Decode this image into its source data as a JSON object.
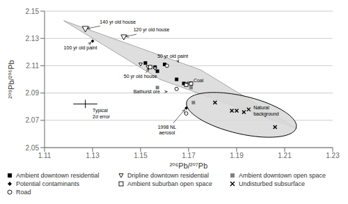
{
  "chart_data": {
    "type": "scatter",
    "x_label": "²⁰⁶Pb/²⁰⁷Pb",
    "y_label": "²⁰⁸Pb/²⁰⁶Pb",
    "xlim": [
      1.11,
      1.23
    ],
    "ylim": [
      2.05,
      2.15
    ],
    "xticks": [
      1.11,
      1.13,
      1.15,
      1.17,
      1.19,
      1.21,
      1.23
    ],
    "yticks": [
      2.05,
      2.07,
      2.09,
      2.11,
      2.13,
      2.15
    ],
    "grid": "y",
    "legend": "bottom",
    "series": [
      {
        "name": "Ambient downtown residential",
        "color": "#000000",
        "marker": "square",
        "values": [
          [
            1.152,
            2.112
          ],
          [
            1.156,
            2.109
          ],
          [
            1.157,
            2.106
          ],
          [
            1.16,
            2.111
          ],
          [
            1.165,
            2.1
          ],
          [
            1.168,
            2.097
          ]
        ]
      },
      {
        "name": "Dripline downtown residential",
        "color": "#000000",
        "marker": "open-triangle-down",
        "values": [
          [
            1.15,
            2.111
          ],
          [
            1.153,
            2.109
          ],
          [
            1.156,
            2.108
          ]
        ]
      },
      {
        "name": "Ambient downtown open space",
        "color": "#808080",
        "marker": "square",
        "values": [
          [
            1.157,
            2.094
          ],
          [
            1.171,
            2.094
          ],
          [
            1.172,
            2.083
          ]
        ]
      },
      {
        "name": "Potential contaminants",
        "color": "#000000",
        "marker": "diamond",
        "values": [
          [
            1.13,
            2.128
          ],
          [
            1.168,
            2.097
          ],
          [
            1.169,
            2.079
          ]
        ]
      },
      {
        "name": "Ambient suburban open space",
        "color": "#000000",
        "marker": "open-square",
        "values": [
          [
            1.154,
            2.109
          ],
          [
            1.169,
            2.096
          ],
          [
            1.171,
            2.097
          ]
        ]
      },
      {
        "name": "Undisturbed subsurface",
        "color": "#000000",
        "marker": "x",
        "values": [
          [
            1.181,
            2.083
          ],
          [
            1.188,
            2.077
          ],
          [
            1.19,
            2.077
          ],
          [
            1.193,
            2.076
          ],
          [
            1.195,
            2.078
          ],
          [
            1.206,
            2.065
          ]
        ]
      },
      {
        "name": "Road",
        "color": "#000000",
        "marker": "open-circle",
        "values": [
          [
            1.161,
            2.11
          ],
          [
            1.165,
            2.093
          ],
          [
            1.169,
            2.075
          ]
        ]
      }
    ],
    "points": [
      {
        "x": 1.127,
        "y": 2.137,
        "marker": "open-triangle-down",
        "color": "#000000"
      },
      {
        "x": 1.143,
        "y": 2.131,
        "marker": "open-triangle-down",
        "color": "#000000"
      }
    ],
    "regions": [
      {
        "shape": "polygon",
        "color": "#d8d8d8",
        "points": [
          [
            1.118,
            2.143
          ],
          [
            1.175,
            2.107
          ],
          [
            1.215,
            2.064
          ],
          [
            1.158,
            2.1
          ]
        ]
      },
      {
        "shape": "ellipse",
        "color": "#d8d8d8",
        "center": [
          1.192,
          2.074
        ],
        "width": 0.05,
        "height": 0.026,
        "angle": -28
      }
    ],
    "error_bars": [
      {
        "x": 1.127,
        "y": 2.082,
        "x_error": 0.005,
        "y_error": 0.003
      }
    ],
    "annotations": [
      {
        "text": "140 yr old house",
        "x": 1.127,
        "y": 2.137,
        "text_x": 1.133,
        "text_y": 2.141
      },
      {
        "text": "120 yr old house",
        "x": 1.143,
        "y": 2.131,
        "text_x": 1.147,
        "text_y": 2.135
      },
      {
        "text": "100 yr old paint",
        "x": 1.13,
        "y": 2.128,
        "text_x": 1.118,
        "text_y": 2.122
      },
      {
        "text": "50 yr old house",
        "x": 1.154,
        "y": 2.109,
        "text_x": 1.143,
        "text_y": 2.101
      },
      {
        "text": "50 yr old paint",
        "x": 1.166,
        "y": 2.111,
        "text_x": 1.157,
        "text_y": 2.116
      },
      {
        "text": "Coal",
        "x": 1.168,
        "y": 2.097,
        "text_x": 1.172,
        "text_y": 2.098
      },
      {
        "text": "Bathurst ore",
        "x": 1.162,
        "y": 2.091,
        "text_x": 1.147,
        "text_y": 2.09
      },
      {
        "text": "1998 NL\naerosol",
        "x": 1.169,
        "y": 2.079,
        "text_x": 1.161,
        "text_y": 2.067
      }
    ],
    "texts": [
      {
        "text": "Natural\nbackground",
        "x": 1.197,
        "y": 2.081
      },
      {
        "text": "Typical\n2σ error",
        "x": 1.13,
        "y": 2.079
      }
    ]
  }
}
